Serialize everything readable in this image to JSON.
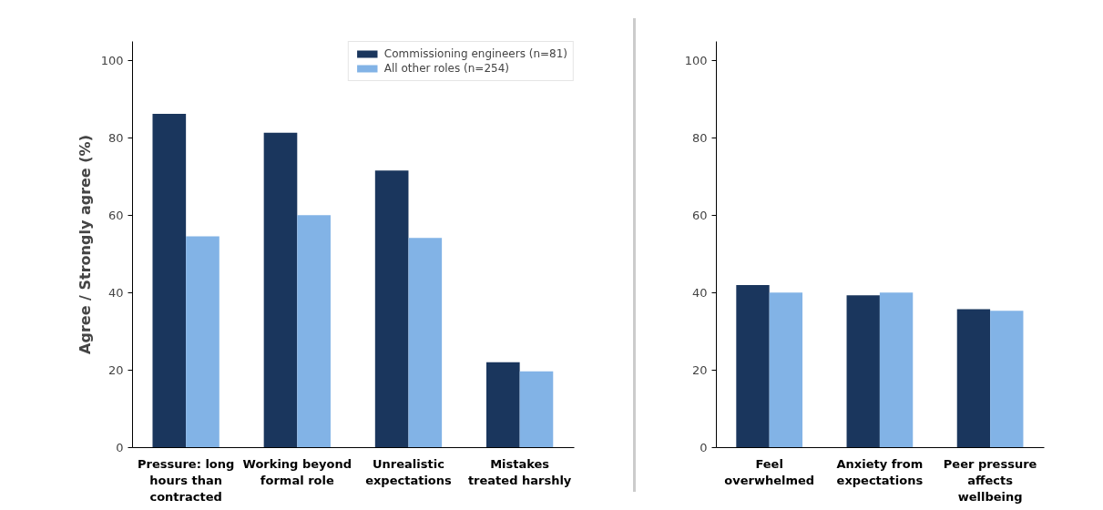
{
  "chart_data": [
    {
      "type": "bar",
      "ylabel": "Agree / Strongly agree (%)",
      "categories": [
        "Pressure: long hours than contracted",
        "Working beyond formal role",
        "Unrealistic expectations",
        "Mistakes treated harshly"
      ],
      "series": [
        {
          "name": "Commissioning engineers (n=81)",
          "color": "#1a365d",
          "values": [
            86.3,
            81.4,
            71.6,
            22.1
          ]
        },
        {
          "name": "All other roles (n=254)",
          "color": "#82b3e6",
          "values": [
            54.6,
            60.1,
            54.2,
            19.7
          ]
        }
      ],
      "ylim": [
        0,
        105
      ],
      "yticks": [
        0,
        20,
        40,
        60,
        80,
        100
      ],
      "grid": false,
      "legend": "top right"
    },
    {
      "type": "bar",
      "categories": [
        "Feel overwhelmed",
        "Anxiety from expectations",
        "Peer pressure affects wellbeing"
      ],
      "series": [
        {
          "color": "#1a365d",
          "values": [
            42.0,
            39.4,
            35.8
          ]
        },
        {
          "color": "#82b3e6",
          "values": [
            40.1,
            40.1,
            35.4
          ]
        }
      ],
      "ylim": [
        0,
        105
      ],
      "yticks": [
        0,
        20,
        40,
        60,
        80,
        100
      ],
      "grid": false,
      "legend": false
    }
  ]
}
